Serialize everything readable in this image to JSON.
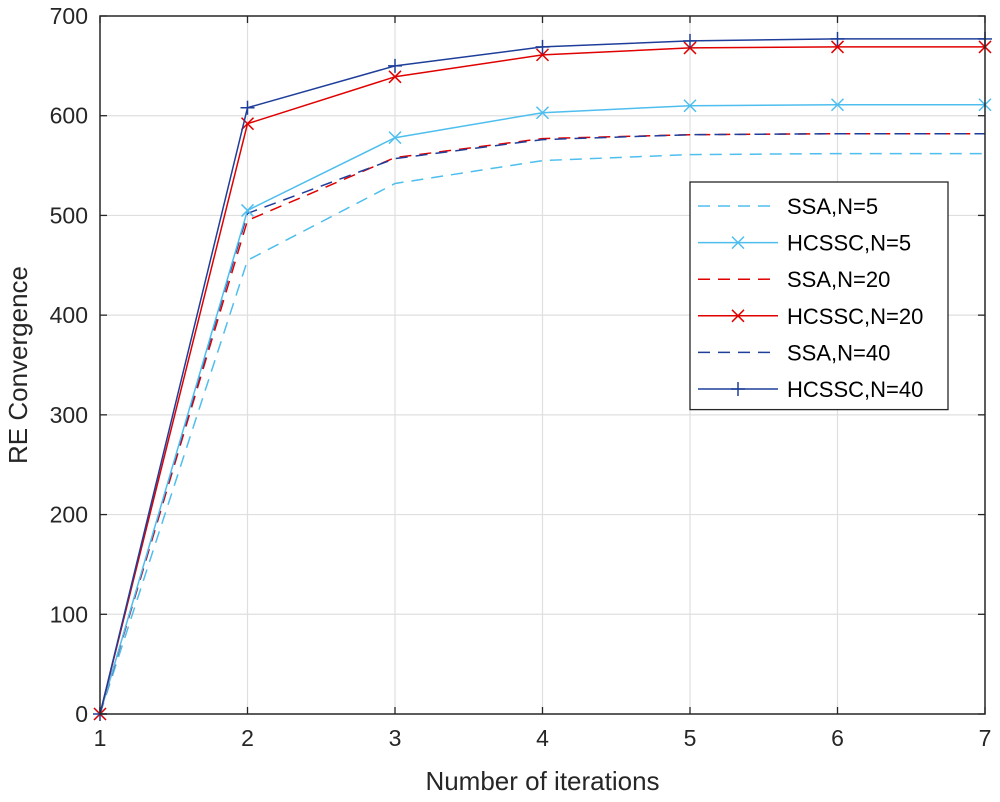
{
  "chart_data": {
    "type": "line",
    "title": "",
    "xlabel": "Number of iterations",
    "ylabel": "RE Convergence",
    "xlim": [
      1,
      7
    ],
    "ylim": [
      0,
      700
    ],
    "x": [
      1,
      2,
      3,
      4,
      5,
      6,
      7
    ],
    "x_ticks": [
      "1",
      "2",
      "3",
      "4",
      "5",
      "6",
      "7"
    ],
    "y_ticks": [
      "0",
      "100",
      "200",
      "300",
      "400",
      "500",
      "600",
      "700"
    ],
    "grid": true,
    "legend_position": "right",
    "series": [
      {
        "name": "SSA,N=5",
        "style": "dashed",
        "marker": "none",
        "color": "#4DBEEE",
        "values": [
          0,
          455,
          532,
          555,
          561,
          562,
          562
        ]
      },
      {
        "name": "HCSSC,N=5",
        "style": "solid",
        "marker": "x",
        "color": "#4DBEEE",
        "values": [
          0,
          505,
          578,
          603,
          610,
          611,
          611
        ]
      },
      {
        "name": "SSA,N=20",
        "style": "dashed",
        "marker": "none",
        "color": "#E00000",
        "values": [
          0,
          495,
          558,
          577,
          581,
          582,
          582
        ]
      },
      {
        "name": "HCSSC,N=20",
        "style": "solid",
        "marker": "x",
        "color": "#E00000",
        "values": [
          0,
          592,
          639,
          661,
          668,
          669,
          669
        ]
      },
      {
        "name": "SSA,N=40",
        "style": "dashed",
        "marker": "none",
        "color": "#1F3E9A",
        "values": [
          0,
          502,
          557,
          576,
          581,
          582,
          582
        ]
      },
      {
        "name": "HCSSC,N=40",
        "style": "solid",
        "marker": "+",
        "color": "#1F3E9A",
        "values": [
          0,
          608,
          650,
          669,
          675,
          677,
          677
        ]
      }
    ]
  }
}
